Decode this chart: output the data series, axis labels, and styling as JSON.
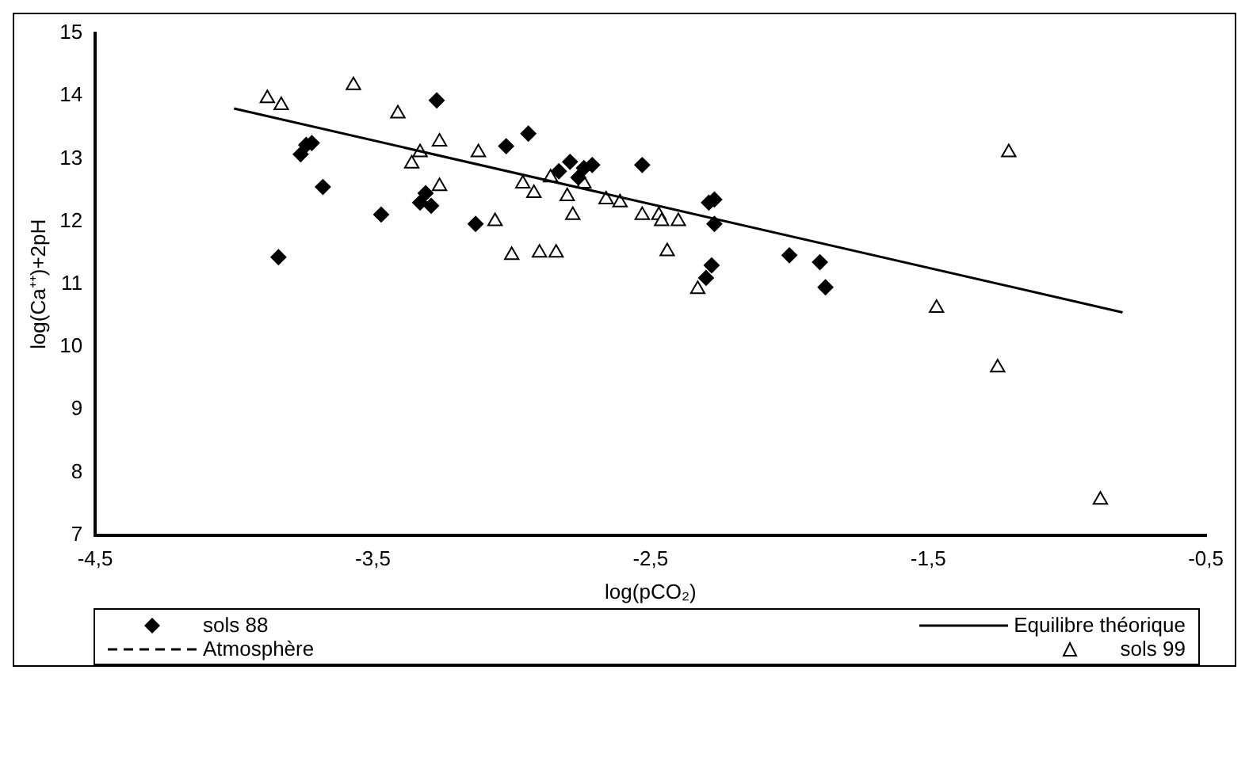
{
  "chart_data": {
    "type": "scatter",
    "xlabel": "log(pCO₂)",
    "ylabel": "log(Ca⁺⁺)+2pH",
    "xlim": [
      -4.5,
      -0.5
    ],
    "xticks": [
      {
        "value": -4.5,
        "label": "-4,5"
      },
      {
        "value": -3.5,
        "label": "-3,5"
      },
      {
        "value": -2.5,
        "label": "-2,5"
      },
      {
        "value": -1.5,
        "label": "-1,5"
      },
      {
        "value": -0.5,
        "label": "-0,5"
      }
    ],
    "ylim": [
      7,
      15
    ],
    "yticks": [
      7,
      8,
      9,
      10,
      11,
      12,
      13,
      14,
      15
    ],
    "grid": false,
    "legend": "bottom",
    "series": [
      {
        "name": "sols 88",
        "marker": "diamond",
        "color": "#000000",
        "x": [
          -3.76,
          -3.74,
          -3.72,
          -3.68,
          -3.84,
          -3.47,
          -3.27,
          -3.33,
          -3.29,
          -3.31,
          -3.13,
          -3.02,
          -2.94,
          -2.83,
          -2.79,
          -2.76,
          -2.74,
          -2.71,
          -2.53,
          -2.29,
          -2.27,
          -2.27,
          -2.28,
          -2.3,
          -2.0,
          -1.89,
          -1.87
        ],
        "values": [
          13.07,
          13.22,
          13.25,
          12.55,
          11.43,
          12.11,
          13.93,
          12.3,
          12.25,
          12.45,
          11.96,
          13.2,
          13.4,
          12.8,
          12.95,
          12.7,
          12.85,
          12.9,
          12.9,
          12.3,
          12.35,
          11.96,
          11.3,
          11.1,
          11.46,
          11.35,
          10.95
        ]
      },
      {
        "name": "Equilibre théorique",
        "type": "line",
        "line_style": "solid",
        "marker": "none",
        "color": "#000000",
        "x": [
          -4.0,
          -0.8
        ],
        "values": [
          13.8,
          10.55
        ]
      },
      {
        "name": "Atmosphère",
        "type": "line",
        "line_style": "dashed",
        "marker": "none",
        "color": "#000000"
      },
      {
        "name": "sols 99",
        "marker": "triangle",
        "color": "#000000",
        "x": [
          -3.88,
          -3.83,
          -3.57,
          -3.41,
          -3.36,
          -3.33,
          -3.26,
          -3.26,
          -3.12,
          -3.06,
          -3.0,
          -2.96,
          -2.92,
          -2.9,
          -2.86,
          -2.84,
          -2.8,
          -2.78,
          -2.74,
          -2.66,
          -2.61,
          -2.53,
          -2.47,
          -2.44,
          -2.4,
          -2.46,
          -2.33,
          -1.47,
          -1.21,
          -1.25,
          -0.88
        ],
        "values": [
          13.96,
          13.85,
          14.17,
          13.72,
          12.92,
          13.1,
          13.27,
          12.56,
          13.1,
          12.0,
          11.46,
          12.6,
          12.45,
          11.5,
          12.7,
          11.5,
          12.4,
          12.1,
          12.6,
          12.35,
          12.3,
          12.1,
          12.1,
          11.52,
          12.0,
          12.0,
          10.92,
          10.62,
          13.1,
          9.67,
          7.56
        ]
      }
    ]
  }
}
